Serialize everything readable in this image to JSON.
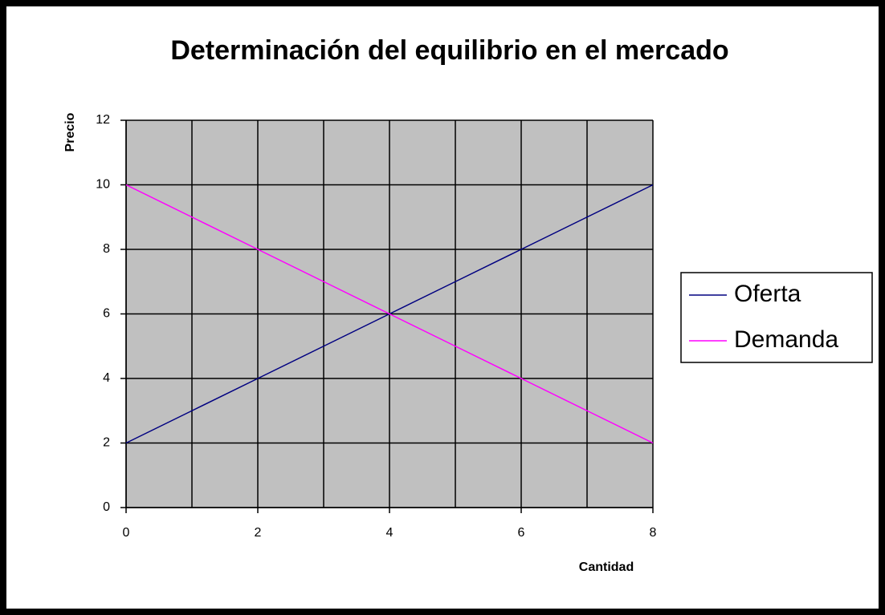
{
  "chart_data": {
    "type": "line",
    "title": "Determinación del equilibrio en el mercado",
    "y_label": "Precio",
    "x_label": "Cantidad",
    "x": [
      0,
      1,
      2,
      3,
      4,
      5,
      6,
      7,
      8
    ],
    "series": [
      {
        "name": "Oferta",
        "color": "#000080",
        "values": [
          2,
          3,
          4,
          5,
          6,
          7,
          8,
          9,
          10
        ]
      },
      {
        "name": "Demanda",
        "color": "#ff00ff",
        "values": [
          10,
          9,
          8,
          7,
          6,
          5,
          4,
          3,
          2
        ]
      }
    ],
    "xlim": [
      0,
      8
    ],
    "xticks": [
      0,
      2,
      4,
      6,
      8
    ],
    "xminorticks": [
      1,
      3,
      5,
      7
    ],
    "ylim": [
      0,
      12
    ],
    "yticks": [
      0,
      2,
      4,
      6,
      8,
      10,
      12
    ],
    "grid": true,
    "plot_background": "#c0c0c0",
    "legend": "right"
  }
}
